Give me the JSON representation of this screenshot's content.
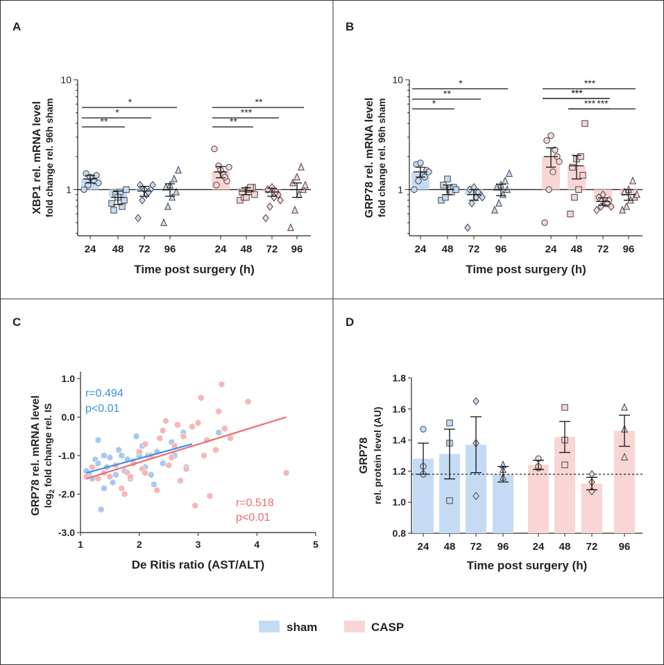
{
  "colors": {
    "sham": "#c5dbf3",
    "casp": "#f9d5d5",
    "sham_line": "#3a8ee6",
    "casp_line": "#ef6b6b"
  },
  "legend": {
    "sham": "sham",
    "casp": "CASP"
  },
  "chart_data": [
    {
      "panel": "A",
      "type": "bar",
      "yscale": "log",
      "ylabel1": "XBP1 rel. mRNA level",
      "ylabel2": "fold change rel. 96h sham",
      "xlabel": "Time post surgery (h)",
      "ytick_labels": [
        "10",
        "1"
      ],
      "ylim": [
        0.38,
        10
      ],
      "categories": [
        "24",
        "48",
        "72",
        "96",
        "24",
        "48",
        "72",
        "96"
      ],
      "groups": [
        "sham",
        "sham",
        "sham",
        "sham",
        "casp",
        "casp",
        "casp",
        "casp"
      ],
      "values": [
        1.25,
        0.85,
        0.97,
        1.0,
        1.45,
        0.97,
        0.95,
        1.0
      ],
      "sem": [
        0.1,
        0.12,
        0.1,
        0.13,
        0.17,
        0.07,
        0.08,
        0.15
      ],
      "markers": [
        "circle",
        "square",
        "diamond",
        "triangle",
        "circle",
        "square",
        "diamond",
        "triangle"
      ],
      "points": [
        [
          1.0,
          1.1,
          1.25,
          1.35,
          1.4,
          1.3,
          1.2,
          1.15
        ],
        [
          0.75,
          0.9,
          0.95,
          0.8,
          0.65,
          0.85,
          0.7,
          1.0
        ],
        [
          0.55,
          0.8,
          0.9,
          1.0,
          1.1,
          1.0,
          0.95,
          1.1
        ],
        [
          0.5,
          0.7,
          0.85,
          0.95,
          1.05,
          1.1,
          1.25,
          1.5
        ],
        [
          2.35,
          1.65,
          1.4,
          1.2,
          1.1,
          1.5,
          1.3,
          1.6
        ],
        [
          0.8,
          0.85,
          1.0,
          1.05,
          0.95,
          0.85,
          1.05,
          0.9
        ],
        [
          0.55,
          0.7,
          0.85,
          0.9,
          1.0,
          1.05,
          0.95,
          0.8
        ],
        [
          0.45,
          0.65,
          0.9,
          1.0,
          1.15,
          1.3,
          1.6,
          1.1
        ]
      ],
      "significance": [
        {
          "from": 0,
          "to": 1,
          "label": "**"
        },
        {
          "from": 0,
          "to": 2,
          "label": "*"
        },
        {
          "from": 0,
          "to": 3,
          "label": "*"
        },
        {
          "from": 4,
          "to": 5,
          "label": "**"
        },
        {
          "from": 4,
          "to": 6,
          "label": "***"
        },
        {
          "from": 4,
          "to": 7,
          "label": "**"
        }
      ]
    },
    {
      "panel": "B",
      "type": "bar",
      "yscale": "log",
      "ylabel1": "GRP78 rel. mRNA level",
      "ylabel2": "fold change rel. 96h sham",
      "xlabel": "Time post surgery (h)",
      "ytick_labels": [
        "10",
        "1"
      ],
      "ylim": [
        0.38,
        10
      ],
      "categories": [
        "24",
        "48",
        "72",
        "96",
        "24",
        "48",
        "72",
        "96"
      ],
      "groups": [
        "sham",
        "sham",
        "sham",
        "sham",
        "casp",
        "casp",
        "casp",
        "casp"
      ],
      "values": [
        1.45,
        1.0,
        0.9,
        1.0,
        2.0,
        1.65,
        0.78,
        0.9
      ],
      "sem": [
        0.15,
        0.1,
        0.1,
        0.12,
        0.4,
        0.4,
        0.06,
        0.1
      ],
      "markers": [
        "circle",
        "square",
        "diamond",
        "triangle",
        "circle",
        "square",
        "diamond",
        "triangle"
      ],
      "points": [
        [
          1.0,
          1.2,
          1.35,
          1.5,
          1.7,
          1.75,
          1.3,
          1.45
        ],
        [
          0.8,
          0.85,
          1.0,
          1.05,
          1.1,
          1.25,
          0.95,
          1.0
        ],
        [
          0.45,
          0.75,
          0.85,
          0.9,
          1.0,
          1.05,
          0.95,
          0.85
        ],
        [
          0.65,
          0.75,
          0.9,
          1.0,
          1.05,
          1.1,
          1.2,
          1.4
        ],
        [
          0.5,
          1.0,
          1.45,
          2.0,
          2.8,
          3.1,
          2.3,
          1.8
        ],
        [
          0.6,
          0.85,
          1.0,
          1.35,
          1.6,
          1.9,
          2.0,
          4.0
        ],
        [
          0.65,
          0.7,
          0.75,
          0.8,
          0.85,
          0.9,
          0.75,
          0.7
        ],
        [
          0.65,
          0.7,
          0.8,
          0.85,
          0.95,
          1.0,
          1.2,
          0.9
        ]
      ],
      "significance": [
        {
          "from": 0,
          "to": 1,
          "label": "*"
        },
        {
          "from": 0,
          "to": 2,
          "label": "**"
        },
        {
          "from": 0,
          "to": 3,
          "label": "*"
        },
        {
          "from": 4,
          "to": 6,
          "label": "***"
        },
        {
          "from": 5,
          "to": 6,
          "label": "***"
        },
        {
          "from": 5,
          "to": 7,
          "label": "***"
        },
        {
          "from": 4,
          "to": 7,
          "label": "***"
        },
        {
          "from": 4,
          "to": 6,
          "label": "***"
        }
      ]
    },
    {
      "panel": "C",
      "type": "scatter",
      "ylabel1": "GRP78 rel. mRNA level",
      "ylabel2_prefix": "log",
      "ylabel2_sub": "2",
      "ylabel2_suffix": " fold change rel. IS",
      "xlabel": "De Ritis ratio (AST/ALT)",
      "xlim": [
        1,
        5
      ],
      "ylim": [
        -3,
        1
      ],
      "xticks": [
        "1",
        "2",
        "3",
        "4",
        "5"
      ],
      "yticks": [
        "1.0",
        "0.0",
        "-1.0",
        "-2.0",
        "-3.0"
      ],
      "series": [
        {
          "name": "sham",
          "r_label": "r=0.494",
          "p_label": "p<0.01",
          "fit": [
            [
              1.1,
              -1.45
            ],
            [
              2.9,
              -0.7
            ]
          ],
          "points": [
            [
              1.1,
              -1.4
            ],
            [
              1.15,
              -1.5
            ],
            [
              1.2,
              -1.6
            ],
            [
              1.25,
              -1.1
            ],
            [
              1.3,
              -0.6
            ],
            [
              1.3,
              -1.2
            ],
            [
              1.35,
              -2.4
            ],
            [
              1.4,
              -1.0
            ],
            [
              1.4,
              -1.85
            ],
            [
              1.45,
              -1.3
            ],
            [
              1.5,
              -1.05
            ],
            [
              1.55,
              -1.7
            ],
            [
              1.6,
              -1.5
            ],
            [
              1.65,
              -0.85
            ],
            [
              1.7,
              -1.0
            ],
            [
              1.75,
              -1.4
            ],
            [
              1.8,
              -1.1
            ],
            [
              1.85,
              -1.6
            ],
            [
              1.9,
              -1.15
            ],
            [
              1.95,
              -0.5
            ],
            [
              2.0,
              -1.0
            ],
            [
              2.05,
              -0.75
            ],
            [
              2.1,
              -1.3
            ],
            [
              2.15,
              -1.0
            ],
            [
              2.2,
              -1.5
            ],
            [
              2.25,
              -1.75
            ],
            [
              2.3,
              -0.9
            ],
            [
              2.4,
              -1.2
            ],
            [
              2.55,
              -0.65
            ],
            [
              2.6,
              -1.0
            ],
            [
              2.75,
              -0.4
            ],
            [
              2.8,
              -1.3
            ],
            [
              3.35,
              -0.4
            ]
          ]
        },
        {
          "name": "casp",
          "r_label": "r=0.518",
          "p_label": "p<0.01",
          "fit": [
            [
              1.1,
              -1.6
            ],
            [
              4.5,
              0.0
            ]
          ],
          "points": [
            [
              1.1,
              -1.55
            ],
            [
              1.2,
              -1.3
            ],
            [
              1.3,
              -1.6
            ],
            [
              1.4,
              -1.45
            ],
            [
              1.5,
              -1.55
            ],
            [
              1.6,
              -1.25
            ],
            [
              1.7,
              -1.85
            ],
            [
              1.75,
              -2.0
            ],
            [
              1.8,
              -1.45
            ],
            [
              1.85,
              -1.55
            ],
            [
              1.9,
              -1.2
            ],
            [
              2.0,
              -0.9
            ],
            [
              2.05,
              -1.35
            ],
            [
              2.1,
              -1.45
            ],
            [
              2.1,
              -0.7
            ],
            [
              2.2,
              -1.0
            ],
            [
              2.3,
              -1.9
            ],
            [
              2.35,
              -0.55
            ],
            [
              2.4,
              -0.35
            ],
            [
              2.45,
              -0.1
            ],
            [
              2.5,
              -1.25
            ],
            [
              2.55,
              -1.05
            ],
            [
              2.6,
              -0.75
            ],
            [
              2.65,
              -0.2
            ],
            [
              2.7,
              -1.65
            ],
            [
              2.75,
              -0.5
            ],
            [
              2.8,
              -1.35
            ],
            [
              2.9,
              -0.25
            ],
            [
              2.95,
              -2.3
            ],
            [
              3.0,
              -0.15
            ],
            [
              3.05,
              0.5
            ],
            [
              3.1,
              -1.0
            ],
            [
              3.15,
              -0.6
            ],
            [
              3.2,
              -2.05
            ],
            [
              3.3,
              -0.85
            ],
            [
              3.35,
              0.15
            ],
            [
              3.4,
              0.85
            ],
            [
              3.45,
              -0.3
            ],
            [
              3.55,
              -0.55
            ],
            [
              3.85,
              0.4
            ],
            [
              4.5,
              -1.45
            ]
          ]
        }
      ]
    },
    {
      "panel": "D",
      "type": "bar",
      "ylabel1": "GRP78",
      "ylabel2": "rel. protein level (AU)",
      "xlabel": "Time post surgery (h)",
      "ylim": [
        0.8,
        1.8
      ],
      "yticks": [
        "1.8",
        "1.6",
        "1.4",
        "1.2",
        "1.0",
        "0.8"
      ],
      "reference_line": 1.18,
      "categories": [
        "24",
        "48",
        "72",
        "96",
        "24",
        "48",
        "72",
        "96"
      ],
      "groups": [
        "sham",
        "sham",
        "sham",
        "sham",
        "casp",
        "casp",
        "casp",
        "casp"
      ],
      "values": [
        1.28,
        1.31,
        1.37,
        1.18,
        1.24,
        1.42,
        1.12,
        1.46
      ],
      "sem": [
        0.1,
        0.16,
        0.18,
        0.05,
        0.03,
        0.1,
        0.04,
        0.1
      ],
      "markers": [
        "circle",
        "square",
        "diamond",
        "triangle",
        "circle",
        "square",
        "diamond",
        "triangle"
      ],
      "points": [
        [
          1.47,
          1.18,
          1.23
        ],
        [
          1.51,
          1.38,
          1.01
        ],
        [
          1.65,
          1.38,
          1.04
        ],
        [
          1.24,
          1.16,
          1.21
        ],
        [
          1.28,
          1.22,
          1.23
        ],
        [
          1.61,
          1.4,
          1.24
        ],
        [
          1.18,
          1.07,
          1.13
        ],
        [
          1.61,
          1.47,
          1.29
        ]
      ]
    }
  ],
  "panels": {
    "a": "A",
    "b": "B",
    "c": "C",
    "d": "D"
  }
}
